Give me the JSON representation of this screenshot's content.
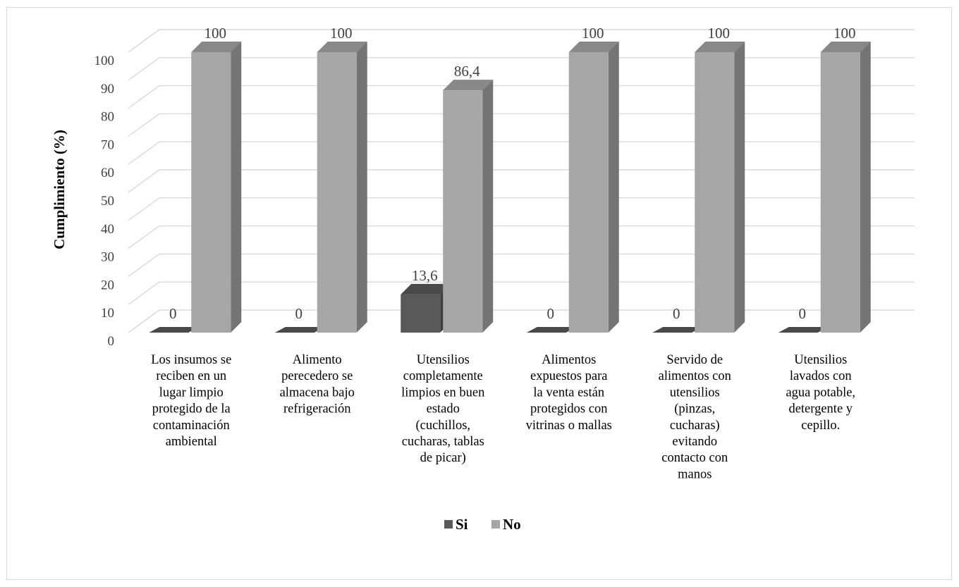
{
  "chart_data": {
    "type": "bar",
    "title": "",
    "xlabel": "",
    "ylabel": "Cumplimiento  (%)",
    "ylim": [
      0,
      100
    ],
    "yticks": [
      "0",
      "10",
      "20",
      "30",
      "40",
      "50",
      "60",
      "70",
      "80",
      "90",
      "100"
    ],
    "grid": true,
    "legend_position": "bottom",
    "categories": [
      [
        "Los insumos se",
        "reciben en un",
        "lugar limpio",
        "protegido de la",
        "contaminación",
        "ambiental"
      ],
      [
        "Alimento",
        "perecedero se",
        "almacena bajo",
        "refrigeración"
      ],
      [
        "Utensilios",
        "completamente",
        "limpios en buen",
        "estado",
        "(cuchillos,",
        "cucharas, tablas",
        "de picar)"
      ],
      [
        "Alimentos",
        "expuestos para",
        "la venta están",
        "protegidos con",
        "vitrinas o mallas"
      ],
      [
        "Servido de",
        "alimentos con",
        "utensilios",
        "(pinzas,",
        "cucharas)",
        "evitando",
        "contacto con",
        "manos"
      ],
      [
        "Utensilios",
        "lavados con",
        "agua potable,",
        "detergente y",
        "cepillo."
      ]
    ],
    "series": [
      {
        "name": "Si",
        "values": [
          0,
          0,
          13.6,
          0,
          0,
          0
        ],
        "labels": [
          "0",
          "0",
          "13,6",
          "0",
          "0",
          "0"
        ],
        "color": "#595959"
      },
      {
        "name": "No",
        "values": [
          100,
          100,
          86.4,
          100,
          100,
          100
        ],
        "labels": [
          "100",
          "100",
          "86,4",
          "100",
          "100",
          "100"
        ],
        "color": "#a6a6a6"
      }
    ]
  }
}
